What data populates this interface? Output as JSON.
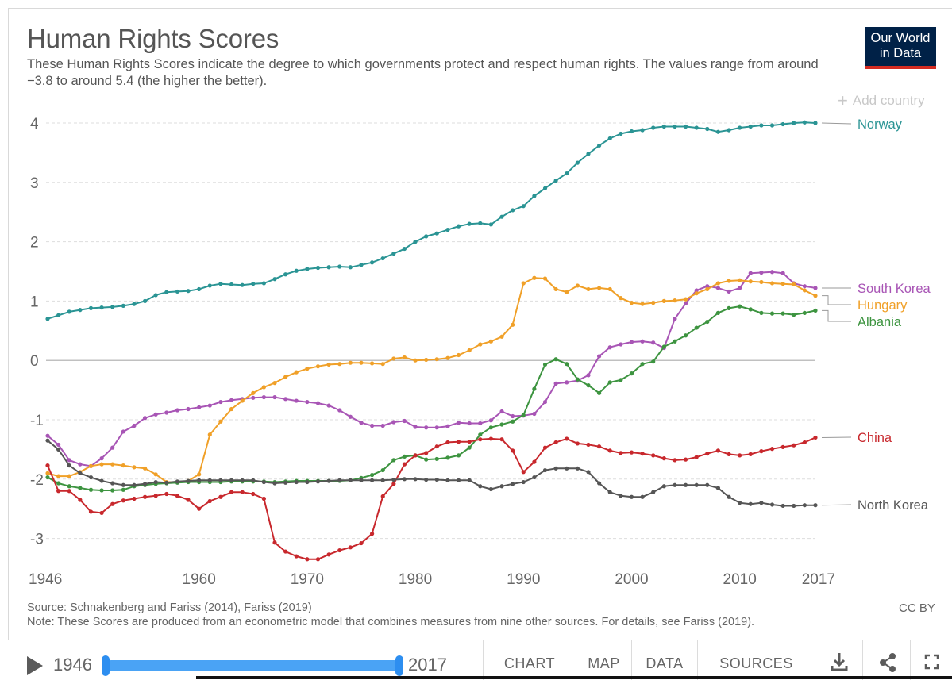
{
  "header": {
    "title": "Human Rights Scores",
    "subtitle": "These Human Rights Scores indicate the degree to which governments protect and respect human rights. The values range from around −3.8 to around 5.4 (the higher the better).",
    "logo_line1": "Our World",
    "logo_line2": "in Data",
    "add_country": "Add country"
  },
  "footer": {
    "source": "Source: Schnakenberg and Fariss (2014), Fariss (2019)",
    "note": "Note: These Scores are produced from an econometric model that combines measures from nine other sources. For details, see Fariss (2019).",
    "license": "CC BY"
  },
  "controls": {
    "start_year": "1946",
    "end_year": "2017",
    "tabs": [
      "CHART",
      "MAP",
      "DATA",
      "SOURCES"
    ],
    "icons": [
      "download-icon",
      "share-icon",
      "fullscreen-icon"
    ]
  },
  "chart_data": {
    "type": "line",
    "title": "Human Rights Scores",
    "xlim": [
      1946,
      2017
    ],
    "ylim": [
      -3.4,
      4.2
    ],
    "x_ticks": [
      1946,
      1960,
      1970,
      1980,
      1990,
      2000,
      2010,
      2017
    ],
    "y_ticks": [
      4,
      3,
      2,
      1,
      0,
      -1,
      -2,
      -3
    ],
    "y_tick_labels": [
      "4",
      "3",
      "2",
      "1",
      "0",
      "-1",
      "-2",
      "-3"
    ],
    "grid": "horizontal-dashed",
    "legend": "right-inline-labels",
    "series": [
      {
        "name": "Norway",
        "color": "#2a9494",
        "x": [
          1946,
          1947,
          1948,
          1949,
          1950,
          1951,
          1952,
          1953,
          1954,
          1955,
          1956,
          1957,
          1958,
          1959,
          1960,
          1961,
          1962,
          1963,
          1964,
          1965,
          1966,
          1967,
          1968,
          1969,
          1970,
          1971,
          1972,
          1973,
          1974,
          1975,
          1976,
          1977,
          1978,
          1979,
          1980,
          1981,
          1982,
          1983,
          1984,
          1985,
          1986,
          1987,
          1988,
          1989,
          1990,
          1991,
          1992,
          1993,
          1994,
          1995,
          1996,
          1997,
          1998,
          1999,
          2000,
          2001,
          2002,
          2003,
          2004,
          2005,
          2006,
          2007,
          2008,
          2009,
          2010,
          2011,
          2012,
          2013,
          2014,
          2015,
          2016,
          2017
        ],
        "y": [
          0.7,
          0.76,
          0.82,
          0.85,
          0.88,
          0.89,
          0.9,
          0.92,
          0.95,
          1.0,
          1.1,
          1.15,
          1.16,
          1.17,
          1.2,
          1.26,
          1.29,
          1.28,
          1.27,
          1.29,
          1.3,
          1.37,
          1.45,
          1.51,
          1.54,
          1.56,
          1.57,
          1.58,
          1.57,
          1.61,
          1.65,
          1.72,
          1.8,
          1.88,
          2.0,
          2.09,
          2.14,
          2.2,
          2.26,
          2.3,
          2.31,
          2.29,
          2.42,
          2.53,
          2.6,
          2.77,
          2.9,
          3.03,
          3.15,
          3.33,
          3.48,
          3.62,
          3.74,
          3.82,
          3.86,
          3.88,
          3.92,
          3.94,
          3.94,
          3.94,
          3.92,
          3.9,
          3.85,
          3.88,
          3.92,
          3.94,
          3.96,
          3.96,
          3.98,
          4.0,
          4.01,
          4.0
        ]
      },
      {
        "name": "South Korea",
        "color": "#a855b5",
        "x": [
          1946,
          1947,
          1948,
          1949,
          1950,
          1951,
          1952,
          1953,
          1954,
          1955,
          1956,
          1957,
          1958,
          1959,
          1960,
          1961,
          1962,
          1963,
          1964,
          1965,
          1966,
          1967,
          1968,
          1969,
          1970,
          1971,
          1972,
          1973,
          1974,
          1975,
          1976,
          1977,
          1978,
          1979,
          1980,
          1981,
          1982,
          1983,
          1984,
          1985,
          1986,
          1987,
          1988,
          1989,
          1990,
          1991,
          1992,
          1993,
          1994,
          1995,
          1996,
          1997,
          1998,
          1999,
          2000,
          2001,
          2002,
          2003,
          2004,
          2005,
          2006,
          2007,
          2008,
          2009,
          2010,
          2011,
          2012,
          2013,
          2014,
          2015,
          2016,
          2017
        ],
        "y": [
          -1.27,
          -1.42,
          -1.68,
          -1.75,
          -1.78,
          -1.65,
          -1.47,
          -1.2,
          -1.1,
          -0.97,
          -0.91,
          -0.88,
          -0.84,
          -0.82,
          -0.79,
          -0.76,
          -0.7,
          -0.67,
          -0.65,
          -0.63,
          -0.62,
          -0.62,
          -0.65,
          -0.68,
          -0.7,
          -0.72,
          -0.76,
          -0.84,
          -0.95,
          -1.05,
          -1.1,
          -1.1,
          -1.04,
          -1.02,
          -1.12,
          -1.13,
          -1.13,
          -1.11,
          -1.05,
          -1.06,
          -1.06,
          -1.01,
          -0.86,
          -0.94,
          -0.93,
          -0.9,
          -0.7,
          -0.39,
          -0.37,
          -0.34,
          -0.25,
          0.07,
          0.22,
          0.27,
          0.31,
          0.32,
          0.3,
          0.21,
          0.7,
          0.96,
          1.18,
          1.25,
          1.22,
          1.16,
          1.22,
          1.47,
          1.48,
          1.49,
          1.47,
          1.3,
          1.25,
          1.22
        ]
      },
      {
        "name": "Hungary",
        "color": "#f0a028",
        "x": [
          1946,
          1947,
          1948,
          1949,
          1950,
          1951,
          1952,
          1953,
          1954,
          1955,
          1956,
          1957,
          1958,
          1959,
          1960,
          1961,
          1962,
          1963,
          1964,
          1965,
          1966,
          1967,
          1968,
          1969,
          1970,
          1971,
          1972,
          1973,
          1974,
          1975,
          1976,
          1977,
          1978,
          1979,
          1980,
          1981,
          1982,
          1983,
          1984,
          1985,
          1986,
          1987,
          1988,
          1989,
          1990,
          1991,
          1992,
          1993,
          1994,
          1995,
          1996,
          1997,
          1998,
          1999,
          2000,
          2001,
          2002,
          2003,
          2004,
          2005,
          2006,
          2007,
          2008,
          2009,
          2010,
          2011,
          2012,
          2013,
          2014,
          2015,
          2016,
          2017
        ],
        "y": [
          -1.9,
          -1.95,
          -1.95,
          -1.88,
          -1.78,
          -1.75,
          -1.75,
          -1.77,
          -1.8,
          -1.82,
          -1.92,
          -2.05,
          -2.05,
          -2.03,
          -1.92,
          -1.25,
          -1.03,
          -0.82,
          -0.68,
          -0.55,
          -0.45,
          -0.38,
          -0.28,
          -0.2,
          -0.14,
          -0.1,
          -0.07,
          -0.06,
          -0.04,
          -0.04,
          -0.05,
          -0.06,
          0.03,
          0.05,
          0.0,
          0.01,
          0.02,
          0.04,
          0.09,
          0.17,
          0.27,
          0.32,
          0.4,
          0.6,
          1.3,
          1.39,
          1.38,
          1.2,
          1.15,
          1.26,
          1.2,
          1.22,
          1.2,
          1.05,
          0.97,
          0.95,
          0.97,
          1.0,
          1.01,
          1.03,
          1.13,
          1.2,
          1.3,
          1.34,
          1.35,
          1.33,
          1.32,
          1.3,
          1.29,
          1.28,
          1.18,
          1.09
        ]
      },
      {
        "name": "Albania",
        "color": "#3d9440",
        "x": [
          1946,
          1947,
          1948,
          1949,
          1950,
          1951,
          1952,
          1953,
          1954,
          1955,
          1956,
          1957,
          1958,
          1959,
          1960,
          1961,
          1962,
          1963,
          1964,
          1965,
          1966,
          1967,
          1968,
          1969,
          1970,
          1971,
          1972,
          1973,
          1974,
          1975,
          1976,
          1977,
          1978,
          1979,
          1980,
          1981,
          1982,
          1983,
          1984,
          1985,
          1986,
          1987,
          1988,
          1989,
          1990,
          1991,
          1992,
          1993,
          1994,
          1995,
          1996,
          1997,
          1998,
          1999,
          2000,
          2001,
          2002,
          2003,
          2004,
          2005,
          2006,
          2007,
          2008,
          2009,
          2010,
          2011,
          2012,
          2013,
          2014,
          2015,
          2016,
          2017
        ],
        "y": [
          -1.97,
          -2.07,
          -2.12,
          -2.15,
          -2.18,
          -2.19,
          -2.19,
          -2.18,
          -2.12,
          -2.1,
          -2.08,
          -2.07,
          -2.06,
          -2.05,
          -2.05,
          -2.05,
          -2.05,
          -2.04,
          -2.04,
          -2.04,
          -2.04,
          -2.05,
          -2.04,
          -2.03,
          -2.03,
          -2.03,
          -2.03,
          -2.03,
          -2.02,
          -1.98,
          -1.93,
          -1.85,
          -1.68,
          -1.62,
          -1.6,
          -1.67,
          -1.66,
          -1.64,
          -1.6,
          -1.47,
          -1.25,
          -1.13,
          -1.08,
          -1.03,
          -0.92,
          -0.48,
          -0.07,
          0.02,
          -0.06,
          -0.32,
          -0.42,
          -0.55,
          -0.37,
          -0.33,
          -0.22,
          -0.06,
          -0.02,
          0.23,
          0.32,
          0.42,
          0.55,
          0.65,
          0.8,
          0.88,
          0.91,
          0.86,
          0.8,
          0.79,
          0.79,
          0.77,
          0.8,
          0.84
        ]
      },
      {
        "name": "China",
        "color": "#c8282d",
        "x": [
          1946,
          1947,
          1948,
          1949,
          1950,
          1951,
          1952,
          1953,
          1954,
          1955,
          1956,
          1957,
          1958,
          1959,
          1960,
          1961,
          1962,
          1963,
          1964,
          1965,
          1966,
          1967,
          1968,
          1969,
          1970,
          1971,
          1972,
          1973,
          1974,
          1975,
          1976,
          1977,
          1978,
          1979,
          1980,
          1981,
          1982,
          1983,
          1984,
          1985,
          1986,
          1987,
          1988,
          1989,
          1990,
          1991,
          1992,
          1993,
          1994,
          1995,
          1996,
          1997,
          1998,
          1999,
          2000,
          2001,
          2002,
          2003,
          2004,
          2005,
          2006,
          2007,
          2008,
          2009,
          2010,
          2011,
          2012,
          2013,
          2014,
          2015,
          2016,
          2017
        ],
        "y": [
          -1.77,
          -2.2,
          -2.2,
          -2.35,
          -2.55,
          -2.57,
          -2.42,
          -2.36,
          -2.33,
          -2.3,
          -2.28,
          -2.25,
          -2.28,
          -2.35,
          -2.5,
          -2.37,
          -2.3,
          -2.22,
          -2.22,
          -2.25,
          -2.33,
          -3.07,
          -3.22,
          -3.3,
          -3.35,
          -3.35,
          -3.27,
          -3.2,
          -3.15,
          -3.08,
          -2.92,
          -2.29,
          -2.08,
          -1.75,
          -1.6,
          -1.56,
          -1.45,
          -1.38,
          -1.37,
          -1.37,
          -1.33,
          -1.32,
          -1.33,
          -1.52,
          -1.88,
          -1.71,
          -1.47,
          -1.38,
          -1.32,
          -1.4,
          -1.42,
          -1.45,
          -1.52,
          -1.56,
          -1.55,
          -1.57,
          -1.6,
          -1.65,
          -1.68,
          -1.67,
          -1.63,
          -1.57,
          -1.52,
          -1.58,
          -1.6,
          -1.58,
          -1.53,
          -1.49,
          -1.46,
          -1.43,
          -1.38,
          -1.3
        ]
      },
      {
        "name": "North Korea",
        "color": "#555555",
        "x": [
          1946,
          1947,
          1948,
          1949,
          1950,
          1951,
          1952,
          1953,
          1954,
          1955,
          1956,
          1957,
          1958,
          1959,
          1960,
          1961,
          1962,
          1963,
          1964,
          1965,
          1966,
          1967,
          1968,
          1969,
          1970,
          1971,
          1972,
          1973,
          1974,
          1975,
          1976,
          1977,
          1978,
          1979,
          1980,
          1981,
          1982,
          1983,
          1984,
          1985,
          1986,
          1987,
          1988,
          1989,
          1990,
          1991,
          1992,
          1993,
          1994,
          1995,
          1996,
          1997,
          1998,
          1999,
          2000,
          2001,
          2002,
          2003,
          2004,
          2005,
          2006,
          2007,
          2008,
          2009,
          2010,
          2011,
          2012,
          2013,
          2014,
          2015,
          2016,
          2017
        ],
        "y": [
          -1.35,
          -1.5,
          -1.77,
          -1.9,
          -1.97,
          -2.03,
          -2.07,
          -2.1,
          -2.1,
          -2.08,
          -2.05,
          -2.06,
          -2.04,
          -2.03,
          -2.02,
          -2.02,
          -2.02,
          -2.02,
          -2.02,
          -2.02,
          -2.05,
          -2.07,
          -2.06,
          -2.05,
          -2.05,
          -2.04,
          -2.03,
          -2.02,
          -2.02,
          -2.02,
          -2.02,
          -2.02,
          -2.01,
          -2.0,
          -2.0,
          -2.01,
          -2.01,
          -2.02,
          -2.02,
          -2.02,
          -2.12,
          -2.17,
          -2.12,
          -2.08,
          -2.05,
          -1.97,
          -1.85,
          -1.82,
          -1.82,
          -1.82,
          -1.88,
          -2.07,
          -2.22,
          -2.28,
          -2.3,
          -2.3,
          -2.22,
          -2.12,
          -2.1,
          -2.1,
          -2.1,
          -2.1,
          -2.15,
          -2.3,
          -2.4,
          -2.42,
          -2.4,
          -2.43,
          -2.45,
          -2.45,
          -2.44,
          -2.44
        ]
      }
    ]
  }
}
